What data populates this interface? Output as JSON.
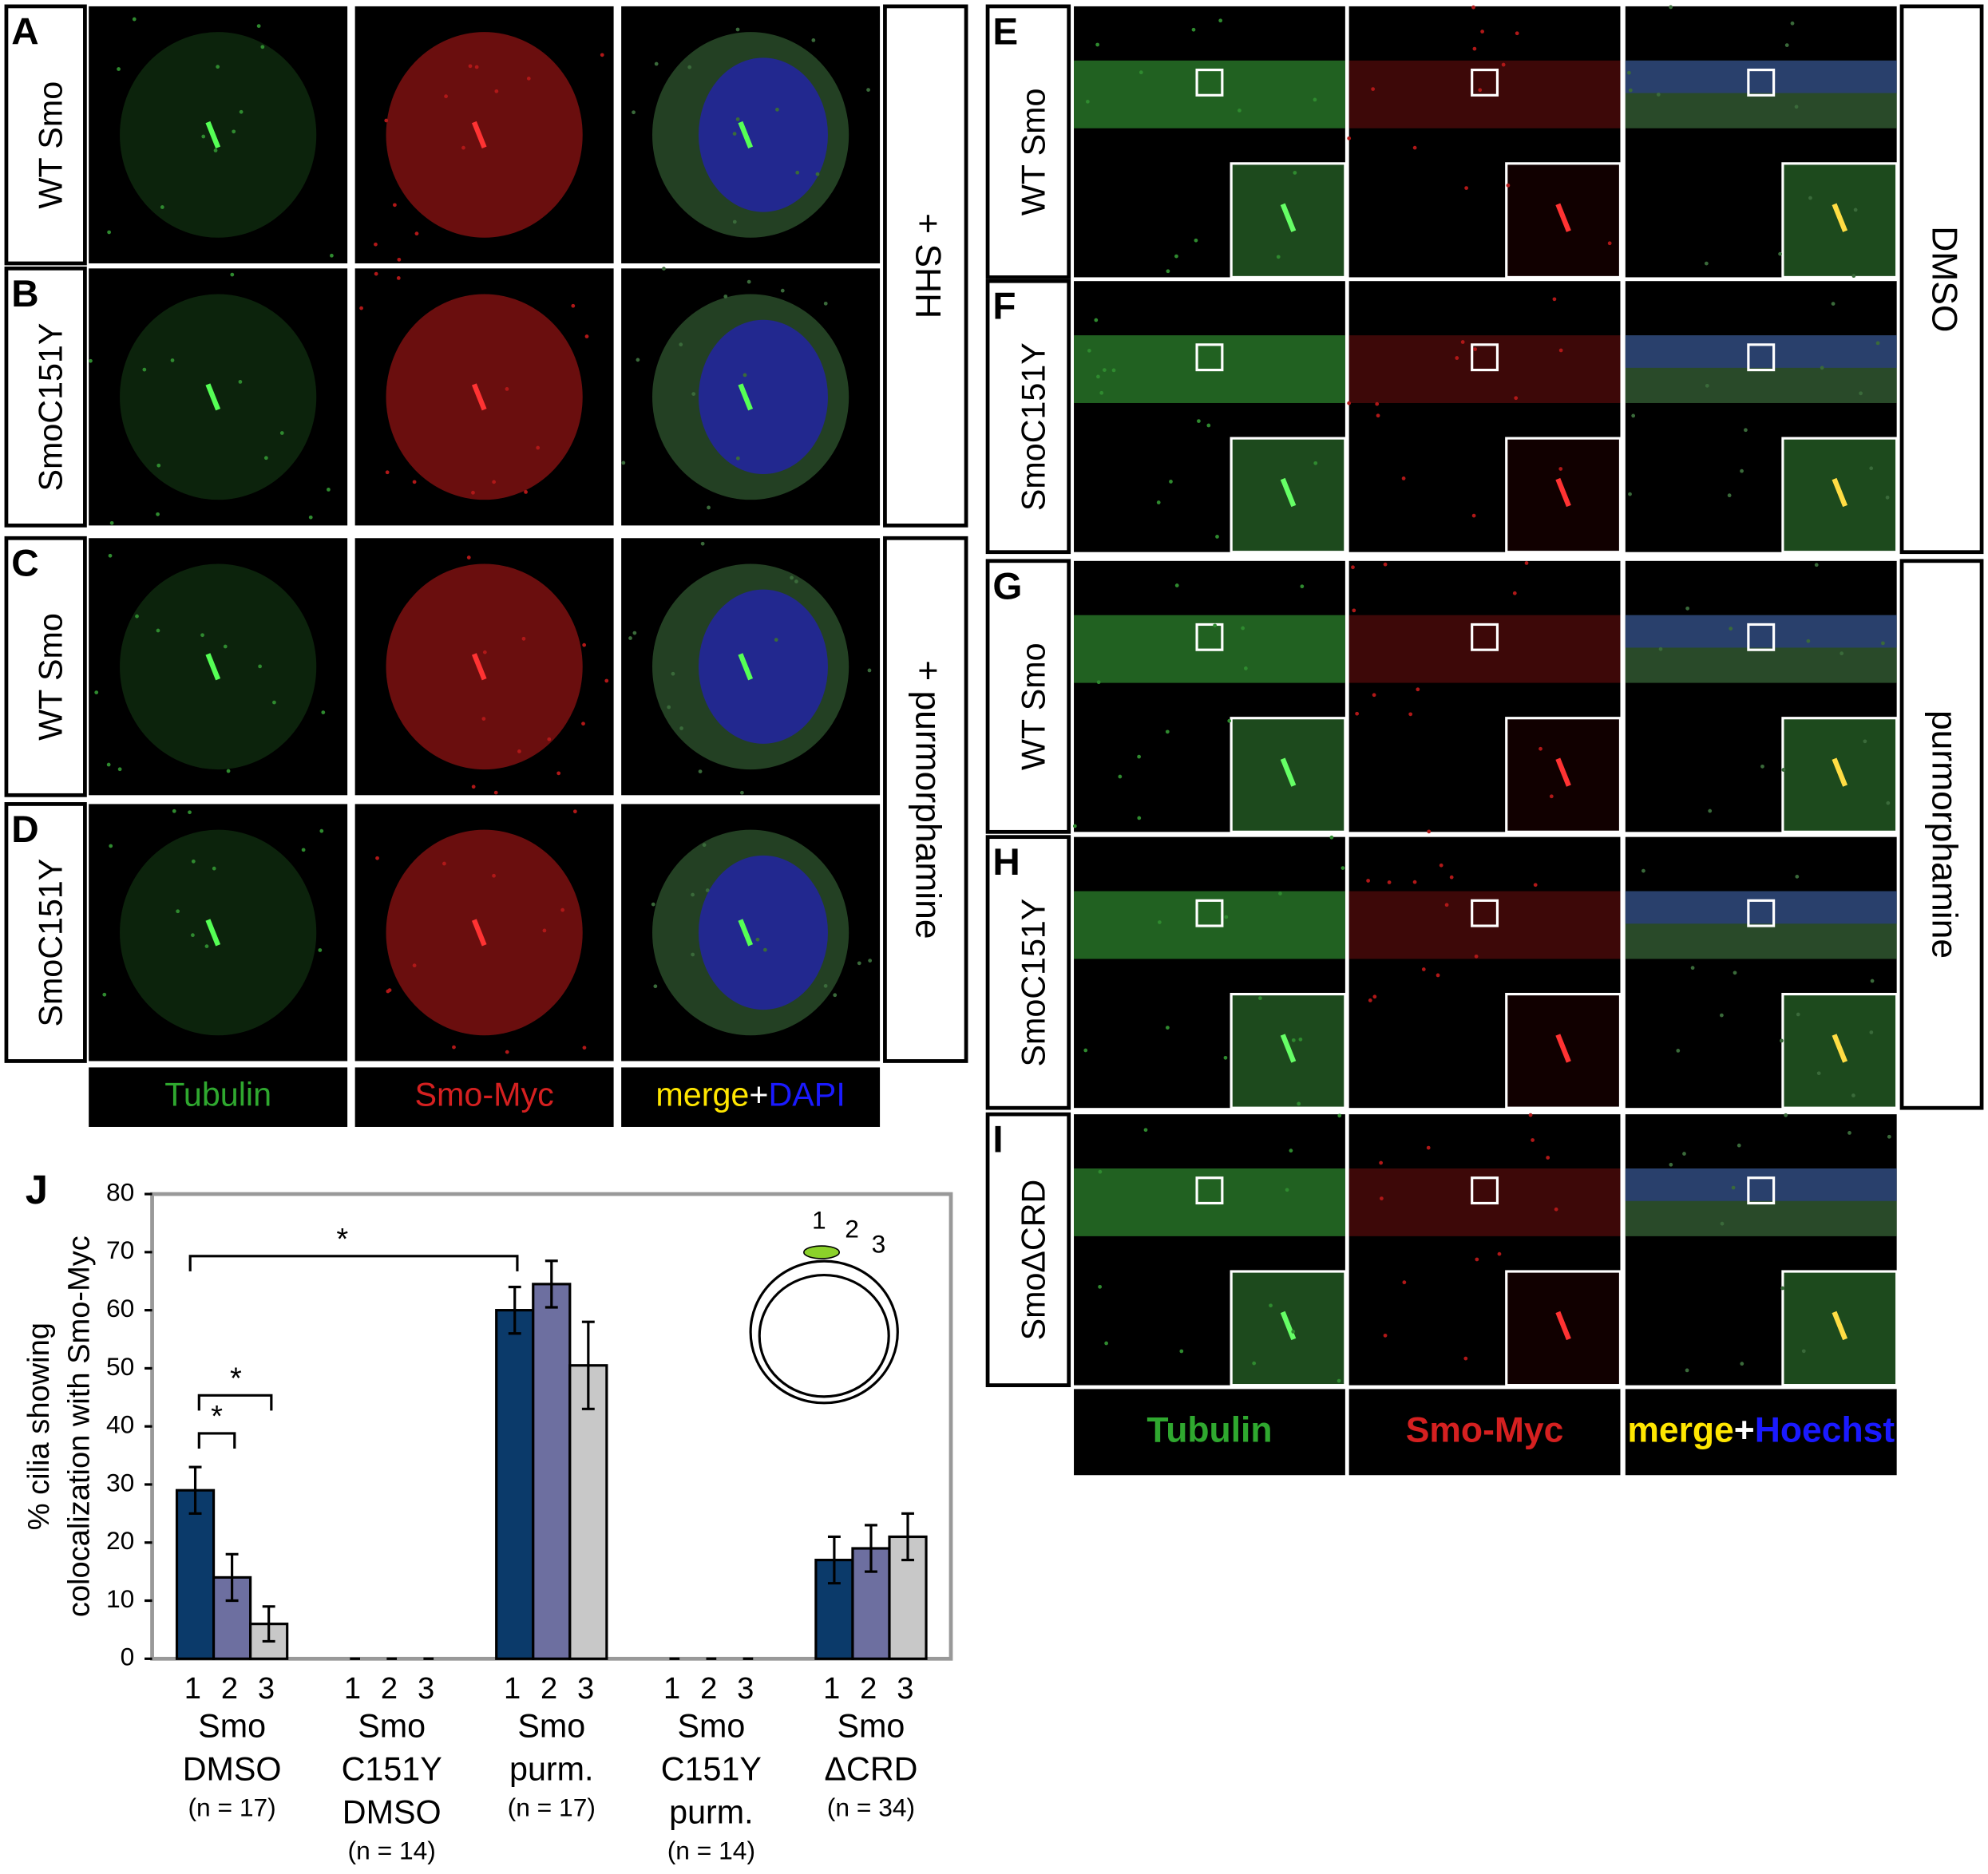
{
  "left_panels": {
    "rows": [
      {
        "letter": "A",
        "label": "WT Smo"
      },
      {
        "letter": "B",
        "label": "SmoC151Y"
      },
      {
        "letter": "C",
        "label": "WT Smo"
      },
      {
        "letter": "D",
        "label": "SmoC151Y"
      }
    ],
    "columns": [
      [
        "Tubulin"
      ],
      [
        "Smo-Myc"
      ],
      [
        "merge",
        "+",
        "DAPI"
      ]
    ],
    "treatments": [
      "+ SHH",
      "+ purmorphamine"
    ]
  },
  "right_panels": {
    "rows": [
      {
        "letter": "E",
        "label": "WT Smo"
      },
      {
        "letter": "F",
        "label": "SmoC151Y"
      },
      {
        "letter": "G",
        "label": "WT Smo"
      },
      {
        "letter": "H",
        "label": "SmoC151Y"
      },
      {
        "letter": "I",
        "label": "SmoΔCRD"
      }
    ],
    "columns": [
      [
        "Tubulin"
      ],
      [
        "Smo-Myc"
      ],
      [
        "merge",
        "+",
        "Hoechst"
      ]
    ],
    "treatments": [
      "DMSO",
      "purmorphamine"
    ]
  },
  "chart_data": {
    "type": "bar",
    "panel_letter": "J",
    "ylabel": [
      "% cilia showing",
      "colocalization with Smo-Myc"
    ],
    "categories": [
      [
        "Smo",
        "DMSO"
      ],
      [
        "Smo",
        "C151Y",
        "DMSO"
      ],
      [
        "Smo",
        "purm."
      ],
      [
        "Smo",
        "C151Y",
        "purm."
      ],
      [
        "Smo",
        "ΔCRD"
      ]
    ],
    "n_labels": [
      "(n = 17)",
      "(n = 14)",
      "(n = 17)",
      "(n = 14)",
      "(n = 34)"
    ],
    "series": [
      {
        "name": "1",
        "color": "#0b3a6a",
        "values": [
          29,
          0,
          60,
          0,
          17
        ],
        "errors": [
          4,
          0,
          4,
          0,
          4
        ]
      },
      {
        "name": "2",
        "color": "#6d6fa0",
        "values": [
          14,
          0,
          64.5,
          0,
          19
        ],
        "errors": [
          4,
          0,
          4,
          0,
          4
        ]
      },
      {
        "name": "3",
        "color": "#c8c8c8",
        "values": [
          6,
          0,
          50.5,
          0,
          21
        ],
        "errors": [
          3,
          0,
          7.5,
          0,
          4
        ]
      }
    ],
    "ylim": [
      0,
      80
    ],
    "yticks": [
      0,
      10,
      20,
      30,
      40,
      50,
      60,
      70,
      80
    ],
    "annotations": [
      "*",
      "*",
      "*"
    ]
  }
}
